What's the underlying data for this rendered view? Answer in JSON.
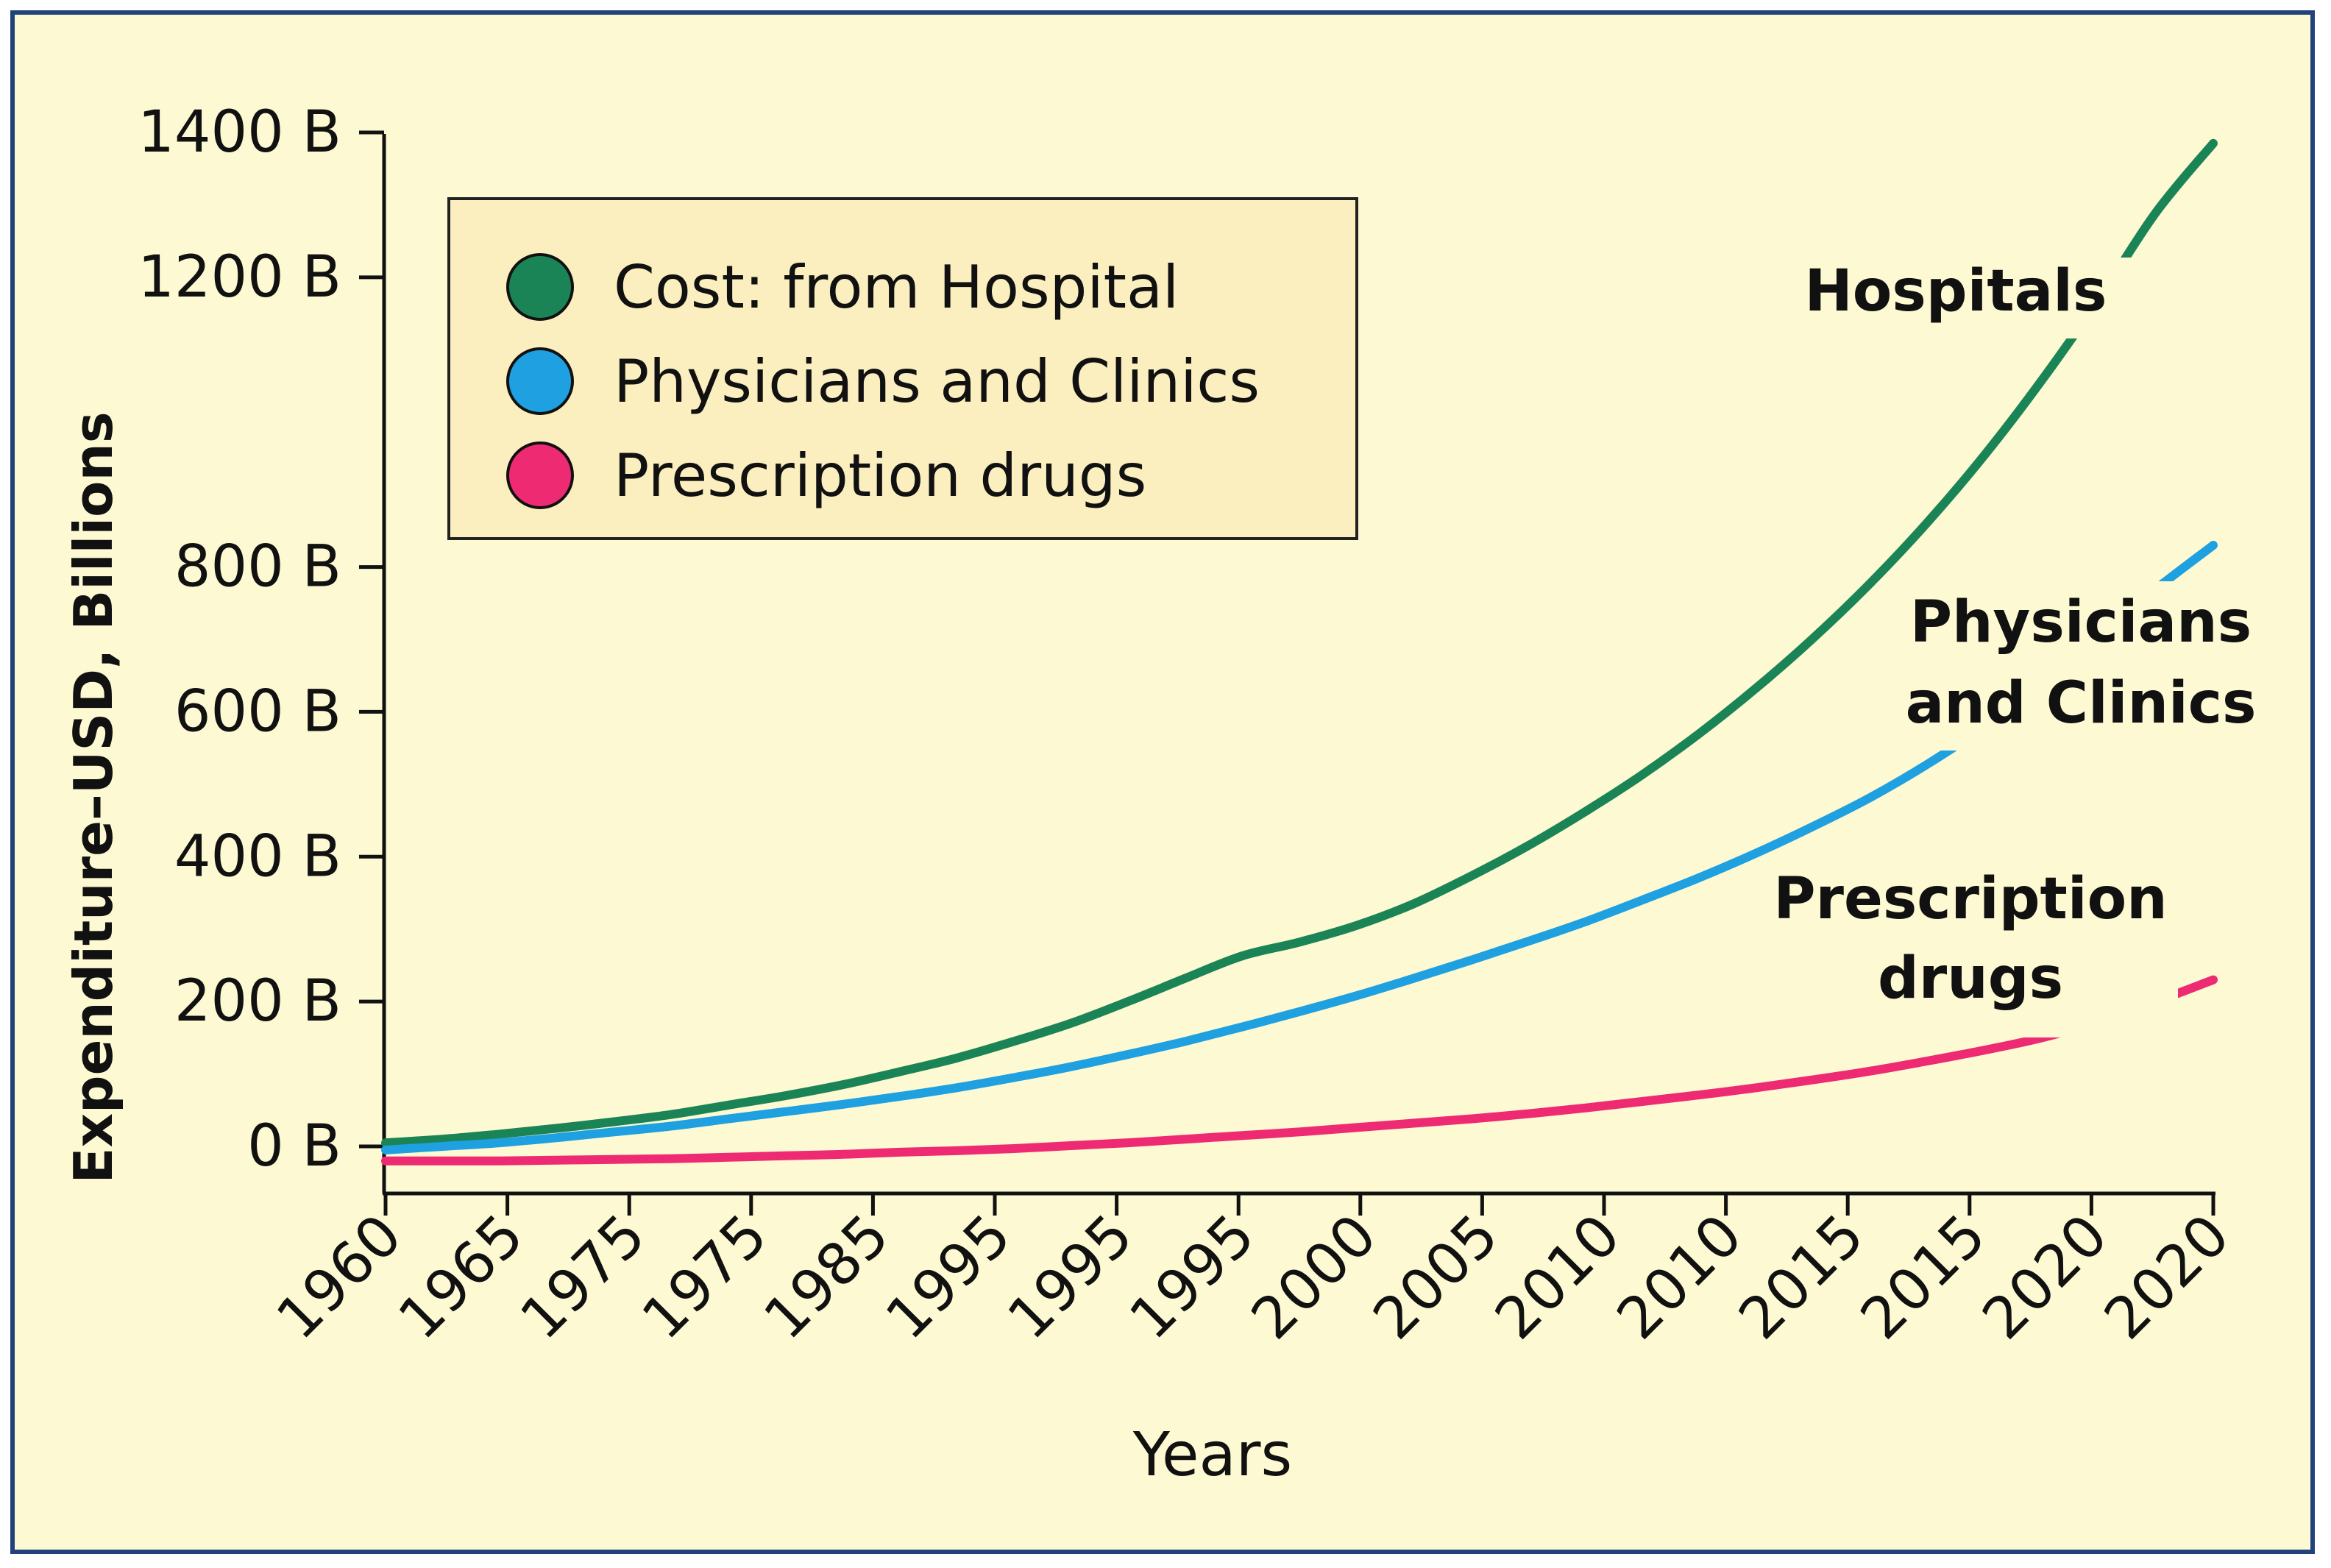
{
  "chart_data": {
    "type": "line",
    "title": "",
    "xlabel": "Years",
    "ylabel": "Expenditure–USD, Billions",
    "x_tick_labels": [
      "1960",
      "1965",
      "1975",
      "1975",
      "1985",
      "1995",
      "1995",
      "1995",
      "2000",
      "2005",
      "2010",
      "2010",
      "2015",
      "2015",
      "2020",
      "2020"
    ],
    "y_ticks": [
      0,
      200,
      400,
      600,
      800,
      1200,
      1400
    ],
    "y_tick_labels": [
      "0 B",
      "200 B",
      "400 B",
      "600 B",
      "800 B",
      "1200 B",
      "1400 B"
    ],
    "ylim": [
      -60,
      1400
    ],
    "grid": false,
    "legend_position": "top-left",
    "series": [
      {
        "name": "Cost: from Hospital",
        "end_label": "Hospitals",
        "color": "#1b8456",
        "values": [
          5,
          10,
          17,
          25,
          34,
          44,
          57,
          70,
          85,
          103,
          122,
          145,
          170,
          200,
          232,
          263,
          282,
          305,
          335,
          373,
          415,
          462,
          513,
          570,
          633,
          702,
          778,
          862,
          955,
          1058,
          1170,
          1290,
          1385
        ]
      },
      {
        "name": "Physicians and Clinics",
        "end_label": "Physicians and Clinics",
        "color": "#1fa0e0",
        "values": [
          -5,
          0,
          5,
          12,
          20,
          28,
          38,
          48,
          58,
          69,
          81,
          95,
          110,
          127,
          145,
          165,
          186,
          208,
          232,
          257,
          283,
          310,
          340,
          371,
          405,
          442,
          482,
          528,
          580,
          640,
          705,
          770,
          830
        ]
      },
      {
        "name": "Prescription drugs",
        "end_label": "Prescription drugs",
        "color": "#ee2a72",
        "values": [
          -20,
          -20,
          -20,
          -19,
          -18,
          -17,
          -15,
          -13,
          -11,
          -8,
          -6,
          -3,
          1,
          5,
          10,
          15,
          20,
          26,
          32,
          38,
          45,
          53,
          62,
          71,
          81,
          92,
          104,
          118,
          133,
          150,
          172,
          200,
          230
        ]
      }
    ]
  }
}
